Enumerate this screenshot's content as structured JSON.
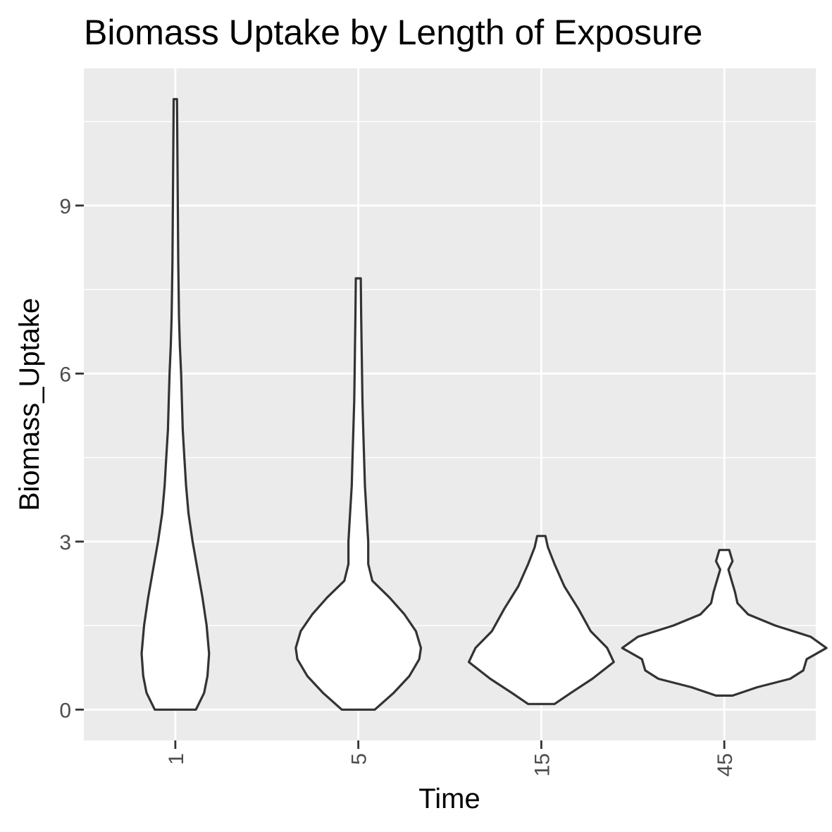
{
  "chart_data": {
    "type": "violin",
    "title": "Biomass Uptake by Length of Exposure",
    "xlabel": "Time",
    "ylabel": "Biomass_Uptake",
    "categories": [
      "1",
      "5",
      "15",
      "45"
    ],
    "y_ticks": [
      0,
      3,
      6,
      9
    ],
    "y_tick_labels": [
      "0",
      "3",
      "6",
      "9"
    ],
    "ylim": [
      -0.55,
      11.45
    ],
    "x_tick_label_rotation": -90,
    "grid": true,
    "colors": {
      "panel_background": "#ebebeb",
      "gridline": "#ffffff",
      "violin_fill": "#ffffff",
      "violin_outline": "#333333",
      "tick_label": "#4d4d4d",
      "tick_mark": "#333333"
    },
    "series": [
      {
        "name": "1",
        "density_profile": [
          [
            0.0,
            0.25
          ],
          [
            0.3,
            0.35
          ],
          [
            0.6,
            0.39
          ],
          [
            1.0,
            0.41
          ],
          [
            1.5,
            0.38
          ],
          [
            2.0,
            0.33
          ],
          [
            2.5,
            0.27
          ],
          [
            3.0,
            0.21
          ],
          [
            3.5,
            0.16
          ],
          [
            4.0,
            0.13
          ],
          [
            4.5,
            0.11
          ],
          [
            5.0,
            0.09
          ],
          [
            5.5,
            0.08
          ],
          [
            6.0,
            0.07
          ],
          [
            6.5,
            0.055
          ],
          [
            7.0,
            0.045
          ],
          [
            8.0,
            0.035
          ],
          [
            9.0,
            0.03
          ],
          [
            10.0,
            0.025
          ],
          [
            10.9,
            0.02
          ]
        ]
      },
      {
        "name": "5",
        "density_profile": [
          [
            0.0,
            0.2
          ],
          [
            0.3,
            0.43
          ],
          [
            0.6,
            0.62
          ],
          [
            0.9,
            0.74
          ],
          [
            1.1,
            0.76
          ],
          [
            1.4,
            0.7
          ],
          [
            1.7,
            0.56
          ],
          [
            2.0,
            0.38
          ],
          [
            2.3,
            0.17
          ],
          [
            2.6,
            0.12
          ],
          [
            3.0,
            0.12
          ],
          [
            3.5,
            0.1
          ],
          [
            4.0,
            0.08
          ],
          [
            4.5,
            0.07
          ],
          [
            5.0,
            0.06
          ],
          [
            5.5,
            0.05
          ],
          [
            6.0,
            0.045
          ],
          [
            6.5,
            0.04
          ],
          [
            7.0,
            0.035
          ],
          [
            7.7,
            0.03
          ]
        ]
      },
      {
        "name": "15",
        "density_profile": [
          [
            0.1,
            0.16
          ],
          [
            0.3,
            0.36
          ],
          [
            0.55,
            0.62
          ],
          [
            0.85,
            0.88
          ],
          [
            1.1,
            0.8
          ],
          [
            1.4,
            0.6
          ],
          [
            1.8,
            0.45
          ],
          [
            2.2,
            0.28
          ],
          [
            2.6,
            0.16
          ],
          [
            2.9,
            0.08
          ],
          [
            3.1,
            0.05
          ]
        ]
      },
      {
        "name": "45",
        "density_profile": [
          [
            0.25,
            0.1
          ],
          [
            0.4,
            0.4
          ],
          [
            0.55,
            0.8
          ],
          [
            0.7,
            0.96
          ],
          [
            0.9,
            1.0
          ],
          [
            1.1,
            1.24
          ],
          [
            1.3,
            1.05
          ],
          [
            1.5,
            0.62
          ],
          [
            1.7,
            0.29
          ],
          [
            1.9,
            0.16
          ],
          [
            2.1,
            0.13
          ],
          [
            2.3,
            0.09
          ],
          [
            2.5,
            0.05
          ],
          [
            2.65,
            0.1
          ],
          [
            2.85,
            0.06
          ]
        ]
      }
    ]
  }
}
